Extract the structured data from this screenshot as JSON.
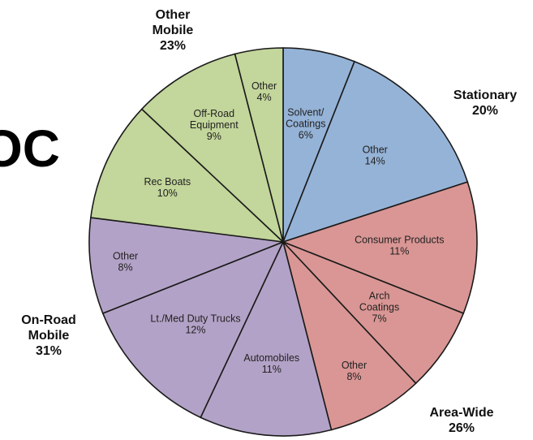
{
  "title_fragment": "OC",
  "chart_data": {
    "type": "pie",
    "title": "",
    "start": "top",
    "direction": "clockwise",
    "groups": [
      {
        "name_lines": [
          "Stationary"
        ],
        "percent": "20%",
        "color": "#95b3d7",
        "anchor": "right-top"
      },
      {
        "name_lines": [
          "Area-Wide"
        ],
        "percent": "26%",
        "color": "#d99694",
        "anchor": "bottom-right"
      },
      {
        "name_lines": [
          "On-Road",
          "Mobile"
        ],
        "percent": "31%",
        "color": "#b3a2c7",
        "anchor": "left-bottom"
      },
      {
        "name_lines": [
          "Other",
          "Mobile"
        ],
        "percent": "23%",
        "color": "#c3d69b",
        "anchor": "top"
      }
    ],
    "slices": [
      {
        "group": 0,
        "label_lines": [
          "Solvent/",
          "Coatings"
        ],
        "value": 6,
        "value_label": "6%"
      },
      {
        "group": 0,
        "label_lines": [
          "Other"
        ],
        "value": 14,
        "value_label": "14%"
      },
      {
        "group": 1,
        "label_lines": [
          "Consumer Products"
        ],
        "value": 11,
        "value_label": "11%"
      },
      {
        "group": 1,
        "label_lines": [
          "Arch",
          "Coatings"
        ],
        "value": 7,
        "value_label": "7%"
      },
      {
        "group": 1,
        "label_lines": [
          "Other"
        ],
        "value": 8,
        "value_label": "8%"
      },
      {
        "group": 2,
        "label_lines": [
          "Automobiles"
        ],
        "value": 11,
        "value_label": "11%"
      },
      {
        "group": 2,
        "label_lines": [
          "Lt./Med Duty Trucks"
        ],
        "value": 12,
        "value_label": "12%"
      },
      {
        "group": 2,
        "label_lines": [
          "Other"
        ],
        "value": 8,
        "value_label": "8%"
      },
      {
        "group": 3,
        "label_lines": [
          "Rec Boats"
        ],
        "value": 10,
        "value_label": "10%"
      },
      {
        "group": 3,
        "label_lines": [
          "Off-Road",
          "Equipment"
        ],
        "value": 9,
        "value_label": "9%"
      },
      {
        "group": 3,
        "label_lines": [
          "Other"
        ],
        "value": 4,
        "value_label": "4%"
      }
    ]
  }
}
